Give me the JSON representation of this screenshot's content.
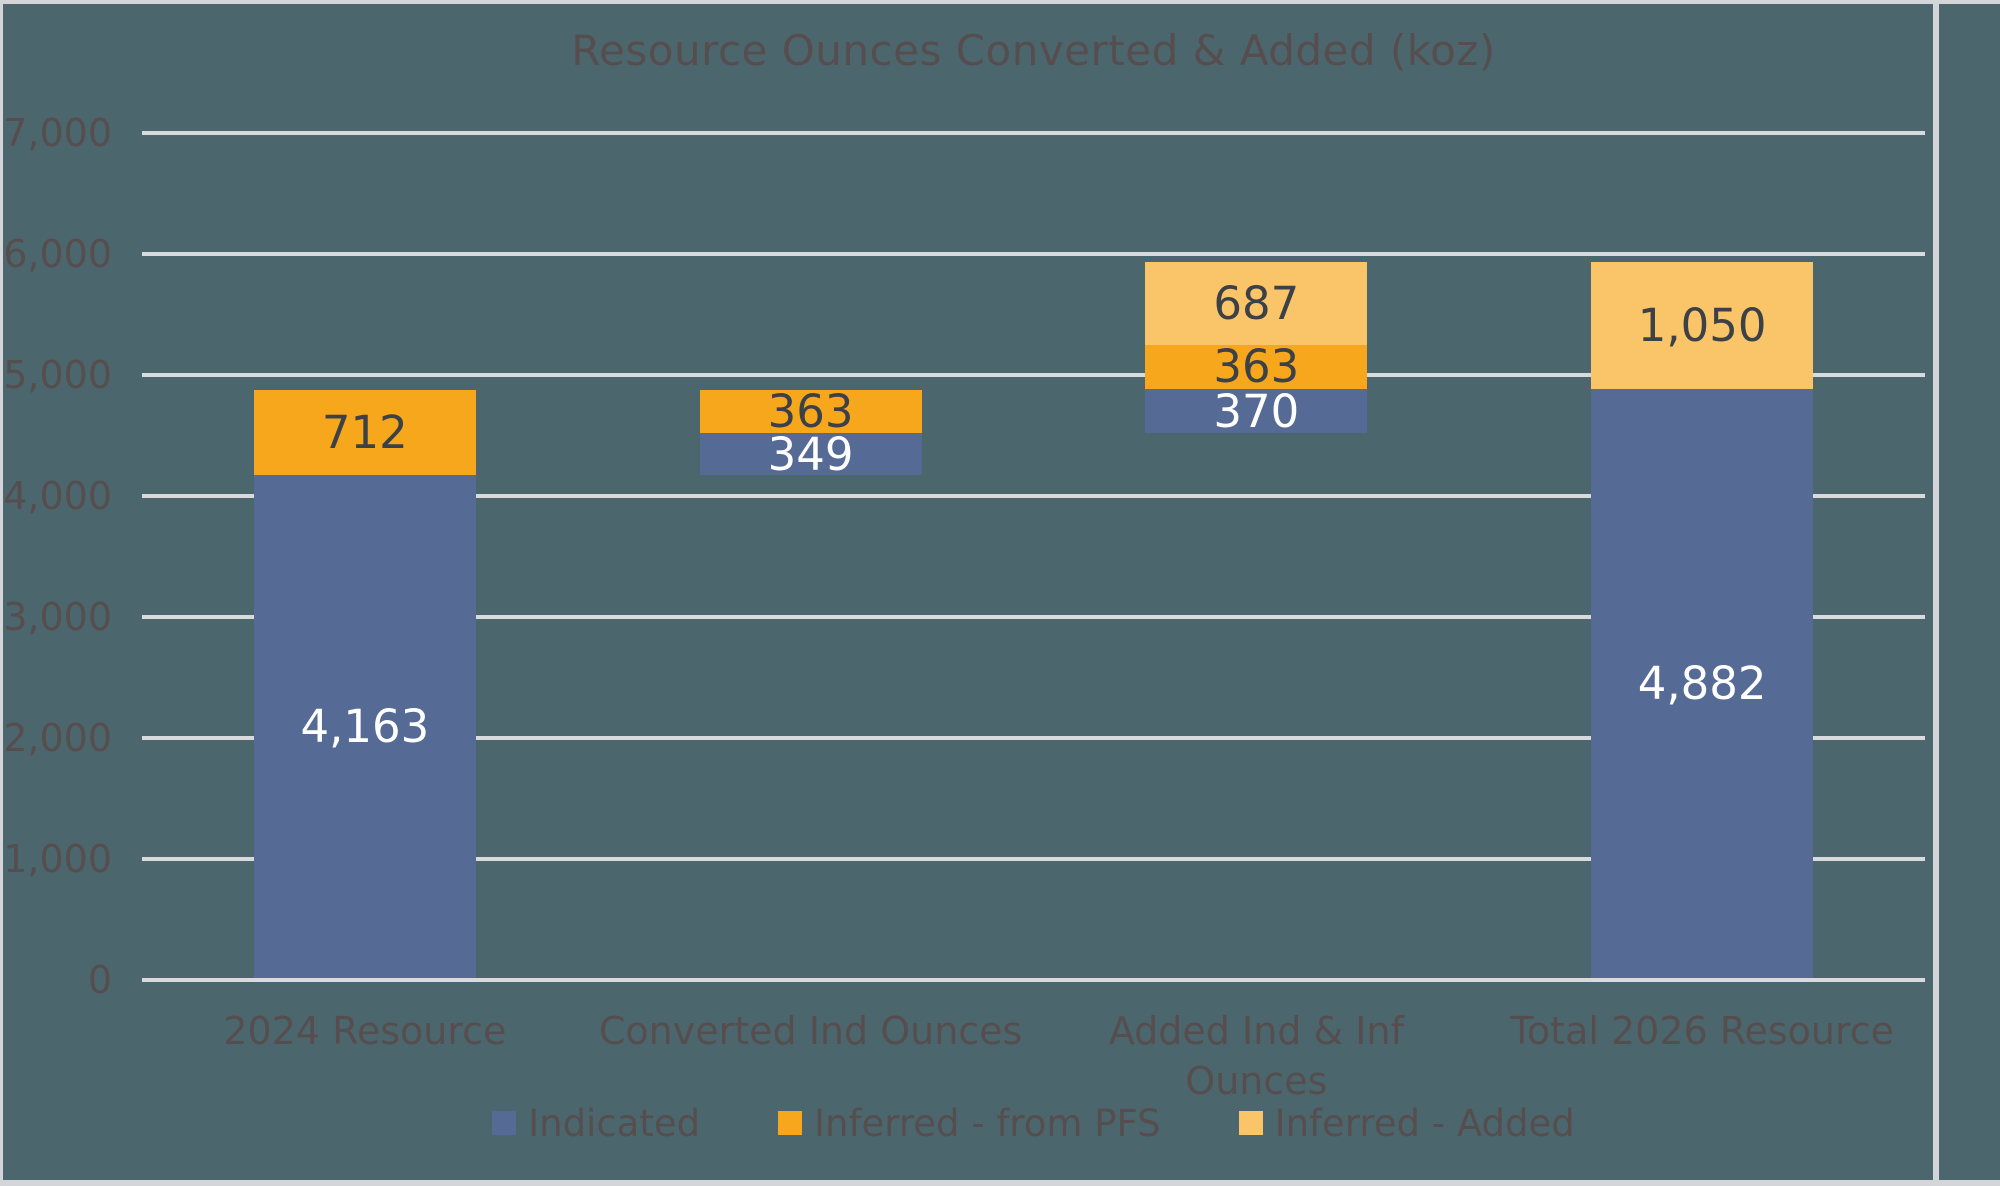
{
  "window": {
    "background_color": "#4C666E",
    "cell_border_color": "#D3D5D9"
  },
  "chart_data": {
    "type": "bar",
    "variant": "stacked-waterfall",
    "title": "Resource Ounces Converted & Added (koz)",
    "title_color": "#564E4E",
    "axis_text_color": "#564E4E",
    "gridline_color": "#D8DADE",
    "grid": true,
    "legend_position": "bottom",
    "ylim": [
      0,
      7000
    ],
    "ytick_interval": 1000,
    "ytick_labels": [
      "0",
      "1,000",
      "2,000",
      "3,000",
      "4,000",
      "5,000",
      "6,000",
      "7,000"
    ],
    "categories": [
      "2024 Resource",
      "Converted Ind Ounces",
      "Added Ind & Inf Ounces",
      "Total 2026 Resource"
    ],
    "base_offsets": [
      0,
      4163,
      4512,
      0
    ],
    "series": [
      {
        "name": "Indicated",
        "color": "#556A94",
        "label_color": "#FFFFFF",
        "values": [
          4163,
          349,
          370,
          4882
        ],
        "labels": [
          "4,163",
          "349",
          "370",
          "4,882"
        ]
      },
      {
        "name": "Inferred - from PFS",
        "color": "#F7A71B",
        "label_color": "#3C4047",
        "values": [
          712,
          363,
          363,
          0
        ],
        "labels": [
          "712",
          "363",
          "363",
          ""
        ]
      },
      {
        "name": "Inferred - Added",
        "color": "#FAC469",
        "label_color": "#3C4047",
        "values": [
          0,
          0,
          687,
          1050
        ],
        "labels": [
          "",
          "",
          "687",
          "1,050"
        ]
      }
    ]
  }
}
